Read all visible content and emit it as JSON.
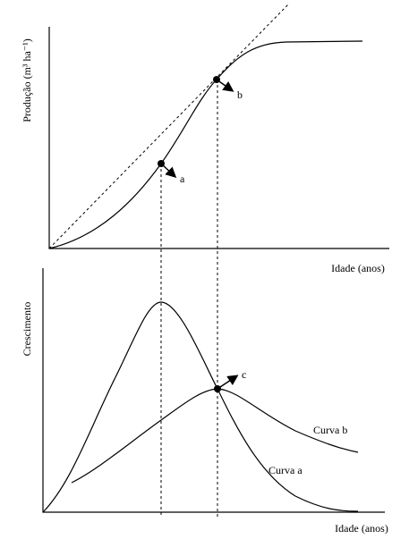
{
  "top": {
    "y_label": "Produção (m³ ha⁻¹)",
    "x_label": "Idade (anos)",
    "point_a": "a",
    "point_b": "b"
  },
  "bottom": {
    "y_label": "Crescimento",
    "x_label": "Idade (anos)",
    "point_c": "c",
    "curve_b": "Curva b",
    "curve_a": "Curva a"
  }
}
